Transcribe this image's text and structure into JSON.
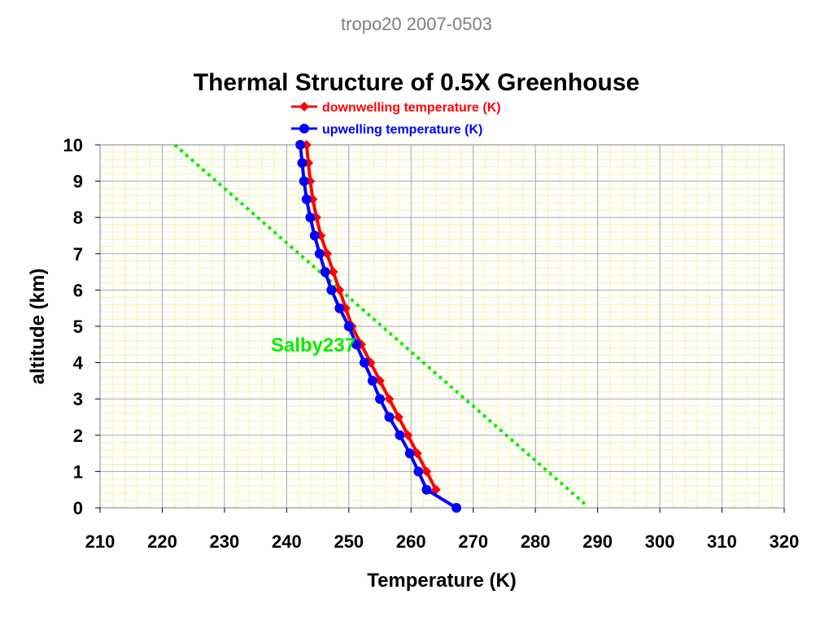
{
  "header": {
    "supertitle": "tropo20 2007-0503"
  },
  "chart_data": {
    "type": "line",
    "title": "Thermal Structure of 0.5X Greenhouse",
    "xlabel": "Temperature (K)",
    "ylabel": "altitude (km)",
    "xlim": [
      210,
      320
    ],
    "ylim": [
      0,
      10
    ],
    "xticks": [
      "210",
      "220",
      "230",
      "240",
      "250",
      "260",
      "270",
      "280",
      "290",
      "300",
      "310",
      "320"
    ],
    "yticks": [
      "0",
      "1",
      "2",
      "3",
      "4",
      "5",
      "6",
      "7",
      "8",
      "9",
      "10"
    ],
    "grid": true,
    "legend": "top-center",
    "series": [
      {
        "name": "downwelling temperature (K)",
        "color": "#ff0000",
        "marker": "diamond",
        "x": [
          264.0,
          262.5,
          261.0,
          259.5,
          258.0,
          256.5,
          255.0,
          253.5,
          252.0,
          250.5,
          249.5,
          248.5,
          247.5,
          246.5,
          245.5,
          244.8,
          244.2,
          243.8,
          243.5,
          243.2
        ],
        "y": [
          0.5,
          1.0,
          1.5,
          2.0,
          2.5,
          3.0,
          3.5,
          4.0,
          4.5,
          5.0,
          5.5,
          6.0,
          6.5,
          7.0,
          7.5,
          8.0,
          8.5,
          9.0,
          9.5,
          10.0
        ]
      },
      {
        "name": "upwelling temperature (K)",
        "color": "#0000ff",
        "marker": "circle",
        "x": [
          267.3,
          262.5,
          261.2,
          259.8,
          258.2,
          256.5,
          255.0,
          253.8,
          252.5,
          251.2,
          250.0,
          248.5,
          247.2,
          246.2,
          245.3,
          244.5,
          243.8,
          243.2,
          242.8,
          242.5,
          242.2
        ],
        "y": [
          0.0,
          0.5,
          1.0,
          1.5,
          2.0,
          2.5,
          3.0,
          3.5,
          4.0,
          4.5,
          5.0,
          5.5,
          6.0,
          6.5,
          7.0,
          7.5,
          8.0,
          8.5,
          9.0,
          9.5,
          10.0
        ]
      }
    ],
    "reference_line": {
      "label": "Salby237",
      "color": "#00ee00",
      "style": "dotted",
      "x": [
        222.0,
        288.0
      ],
      "y": [
        10.0,
        0.1
      ]
    }
  }
}
